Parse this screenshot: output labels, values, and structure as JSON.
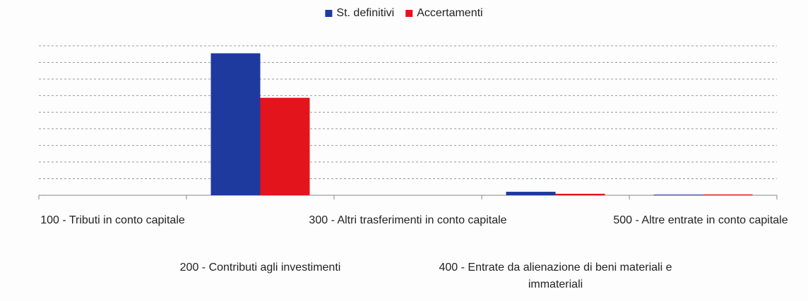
{
  "chart_data": {
    "type": "bar",
    "categories": [
      "100 - Tributi in conto capitale",
      "200 - Contributi agli investimenti",
      "300 - Altri trasferimenti in conto capitale",
      "400 - Entrate da alienazione di beni materiali e immateriali",
      "500 - Altre entrate in conto capitale"
    ],
    "series": [
      {
        "name": "St. definitivi",
        "color": "#1f3a9e",
        "values": [
          0,
          8.55,
          0,
          0.21,
          0.04
        ]
      },
      {
        "name": "Accertamenti",
        "color": "#e3141b",
        "values": [
          0,
          5.87,
          0,
          0.09,
          0.05
        ]
      }
    ],
    "ylim": [
      0,
      9
    ],
    "yticks": [
      1,
      2,
      3,
      4,
      5,
      6,
      7,
      8,
      9
    ],
    "grid": true,
    "legend": "top"
  }
}
